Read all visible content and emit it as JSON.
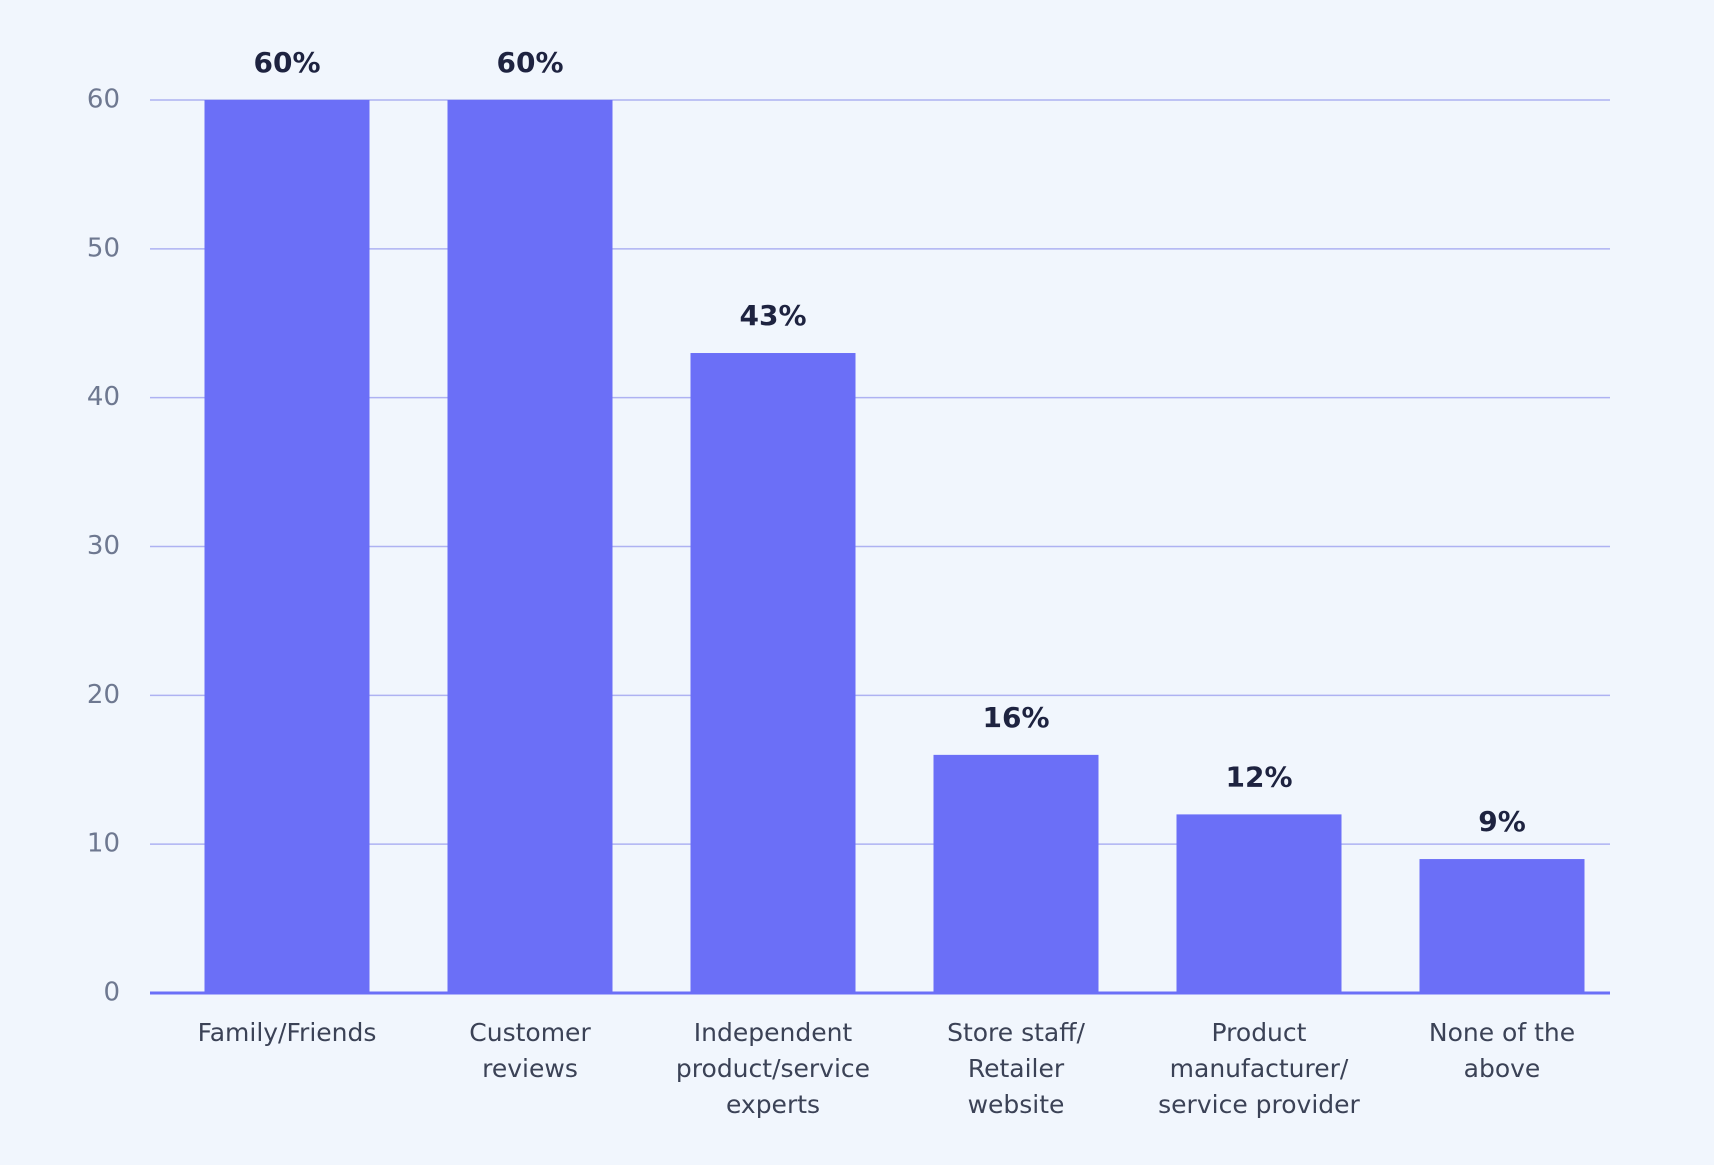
{
  "chart_data": {
    "type": "bar",
    "categories": [
      "Family/Friends",
      "Customer\nreviews",
      "Independent\nproduct/service\nexperts",
      "Store staff/\nRetailer\nwebsite",
      "Product\nmanufacturer/\nservice provider",
      "None of the\nabove"
    ],
    "values": [
      60,
      60,
      43,
      16,
      12,
      9
    ],
    "value_labels": [
      "60%",
      "60%",
      "43%",
      "16%",
      "12%",
      "9%"
    ],
    "color": "#6b6ff7",
    "ylim": [
      0,
      60
    ],
    "yticks": [
      0,
      10,
      20,
      30,
      40,
      50,
      60
    ],
    "grid": true
  }
}
